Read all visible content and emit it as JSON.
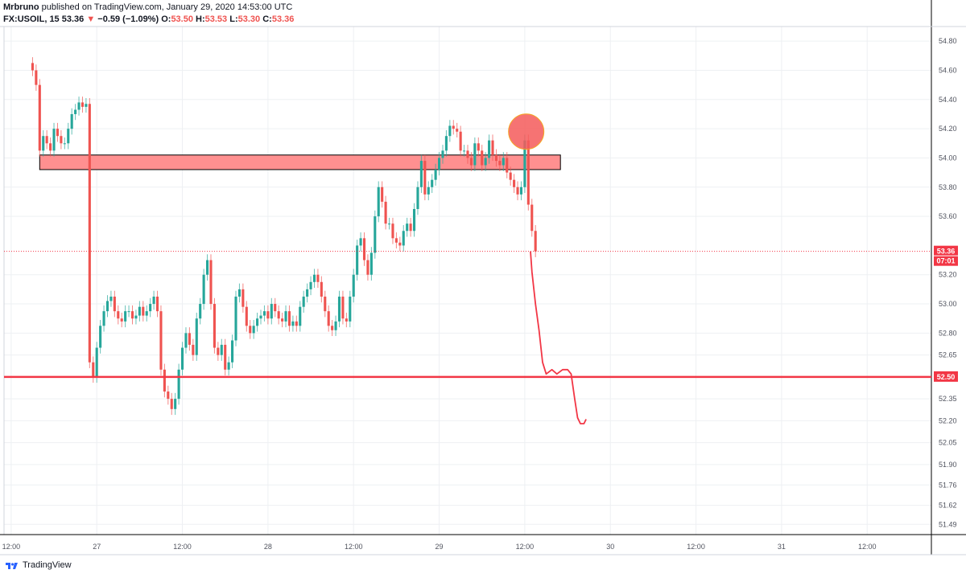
{
  "header": {
    "author": "Mrbruno",
    "published": "published on TradingView.com, January 29, 2020 14:53:00 UTC",
    "symbol": "FX:USOIL, 15",
    "last": "53.36",
    "change_arrow": "▼",
    "change": "−0.59 (−1.09%)",
    "o_label": "O:",
    "o_value": "53.50",
    "h_label": "H:",
    "h_value": "53.53",
    "l_label": "L:",
    "l_value": "53.30",
    "c_label": "C:",
    "c_value": "53.36"
  },
  "footer": {
    "brand": "TradingView",
    "logo_icon": "tradingview-logo-icon"
  },
  "colors": {
    "up": "#26a69a",
    "down": "#ef5350",
    "level": "#f23645",
    "zone_fill": "#ff8a8a",
    "grid": "#eef0f3",
    "axis_text": "#50535e"
  },
  "chart_data": {
    "type": "candlestick",
    "title": "FX:USOIL, 15",
    "xlabel": "",
    "ylabel": "",
    "ylim": [
      51.42,
      54.9
    ],
    "grid": true,
    "y_ticks": [
      "54.80",
      "54.60",
      "54.40",
      "54.20",
      "54.00",
      "53.80",
      "53.60",
      "53.20",
      "53.00",
      "52.80",
      "52.65",
      "52.50",
      "52.35",
      "52.20",
      "52.05",
      "51.90",
      "51.76",
      "51.62",
      "51.49"
    ],
    "y_tick_values": [
      54.8,
      54.6,
      54.4,
      54.2,
      54.0,
      53.8,
      53.6,
      53.2,
      53.0,
      52.8,
      52.65,
      52.5,
      52.35,
      52.2,
      52.05,
      51.9,
      51.76,
      51.62,
      51.49
    ],
    "x_ticks": [
      "12:00",
      "27",
      "12:00",
      "28",
      "12:00",
      "29",
      "12:00",
      "30",
      "12:00",
      "31",
      "12:00"
    ],
    "x_tick_hours": [
      12,
      24,
      36,
      48,
      60,
      72,
      84,
      96,
      108,
      120,
      132
    ],
    "x_domain_hours": [
      11.0,
      141.0
    ],
    "last_price_label": "53.36",
    "last_price_value": 53.36,
    "countdown_label": "07:01",
    "support_label": "52.50",
    "support_value": 52.5,
    "resistance_zone": {
      "from_hour": 16.0,
      "to_hour": 89.0,
      "low": 53.92,
      "high": 54.02
    },
    "circle_marker": {
      "hour": 84.2,
      "price": 54.18
    },
    "projection_path": [
      [
        84.8,
        53.36
      ],
      [
        85.0,
        53.22
      ],
      [
        85.5,
        53.0
      ],
      [
        86.0,
        52.82
      ],
      [
        86.5,
        52.6
      ],
      [
        87.0,
        52.52
      ],
      [
        87.8,
        52.55
      ],
      [
        88.5,
        52.52
      ],
      [
        89.3,
        52.55
      ],
      [
        90.0,
        52.55
      ],
      [
        90.5,
        52.52
      ],
      [
        91.0,
        52.35
      ],
      [
        91.4,
        52.22
      ],
      [
        91.8,
        52.18
      ],
      [
        92.3,
        52.18
      ],
      [
        92.6,
        52.21
      ]
    ],
    "points": [
      [
        15.0,
        54.6
      ],
      [
        15.5,
        54.5
      ],
      [
        16.0,
        54.05
      ],
      [
        16.5,
        54.15
      ],
      [
        17.0,
        54.1
      ],
      [
        17.5,
        54.05
      ],
      [
        18.0,
        54.2
      ],
      [
        18.5,
        54.15
      ],
      [
        19.0,
        54.1
      ],
      [
        19.5,
        54.1
      ],
      [
        20.0,
        54.2
      ],
      [
        20.5,
        54.3
      ],
      [
        21.0,
        54.33
      ],
      [
        21.5,
        54.38
      ],
      [
        22.0,
        54.35
      ],
      [
        22.5,
        54.37
      ],
      [
        23.0,
        52.6
      ],
      [
        23.5,
        52.5
      ],
      [
        24.0,
        52.7
      ],
      [
        24.5,
        52.85
      ],
      [
        25.0,
        52.95
      ],
      [
        25.5,
        53.02
      ],
      [
        26.0,
        53.05
      ],
      [
        26.5,
        52.95
      ],
      [
        27.0,
        52.9
      ],
      [
        27.5,
        52.88
      ],
      [
        28.0,
        52.95
      ],
      [
        28.5,
        52.95
      ],
      [
        29.0,
        52.9
      ],
      [
        29.5,
        52.92
      ],
      [
        30.0,
        52.98
      ],
      [
        30.5,
        52.92
      ],
      [
        31.0,
        52.95
      ],
      [
        31.5,
        53.0
      ],
      [
        32.0,
        53.05
      ],
      [
        32.5,
        52.95
      ],
      [
        33.0,
        52.55
      ],
      [
        33.5,
        52.4
      ],
      [
        34.0,
        52.35
      ],
      [
        34.5,
        52.28
      ],
      [
        35.0,
        52.35
      ],
      [
        35.5,
        52.55
      ],
      [
        36.0,
        52.7
      ],
      [
        36.5,
        52.8
      ],
      [
        37.0,
        52.72
      ],
      [
        37.5,
        52.65
      ],
      [
        38.0,
        52.9
      ],
      [
        38.5,
        53.0
      ],
      [
        39.0,
        53.2
      ],
      [
        39.5,
        53.3
      ],
      [
        40.0,
        53.0
      ],
      [
        40.5,
        52.7
      ],
      [
        41.0,
        52.65
      ],
      [
        41.5,
        52.72
      ],
      [
        42.0,
        52.55
      ],
      [
        42.5,
        52.6
      ],
      [
        43.0,
        52.75
      ],
      [
        43.5,
        53.05
      ],
      [
        44.0,
        53.1
      ],
      [
        44.5,
        52.98
      ],
      [
        45.0,
        52.85
      ],
      [
        45.5,
        52.8
      ],
      [
        46.0,
        52.85
      ],
      [
        46.5,
        52.9
      ],
      [
        47.0,
        52.92
      ],
      [
        47.5,
        52.95
      ],
      [
        48.0,
        52.9
      ],
      [
        48.5,
        53.0
      ],
      [
        49.0,
        52.95
      ],
      [
        49.5,
        52.9
      ],
      [
        50.0,
        52.88
      ],
      [
        50.5,
        52.95
      ],
      [
        51.0,
        52.85
      ],
      [
        51.5,
        52.88
      ],
      [
        52.0,
        52.85
      ],
      [
        52.5,
        52.98
      ],
      [
        53.0,
        53.05
      ],
      [
        53.5,
        53.1
      ],
      [
        54.0,
        53.15
      ],
      [
        54.5,
        53.2
      ],
      [
        55.0,
        53.15
      ],
      [
        55.5,
        53.05
      ],
      [
        56.0,
        52.95
      ],
      [
        56.5,
        52.85
      ],
      [
        57.0,
        52.82
      ],
      [
        57.5,
        52.88
      ],
      [
        58.0,
        53.05
      ],
      [
        58.5,
        52.9
      ],
      [
        59.0,
        52.88
      ],
      [
        59.5,
        53.05
      ],
      [
        60.0,
        53.2
      ],
      [
        60.5,
        53.4
      ],
      [
        61.0,
        53.45
      ],
      [
        61.5,
        53.3
      ],
      [
        62.0,
        53.2
      ],
      [
        62.5,
        53.35
      ],
      [
        63.0,
        53.6
      ],
      [
        63.5,
        53.8
      ],
      [
        64.0,
        53.7
      ],
      [
        64.5,
        53.55
      ],
      [
        65.0,
        53.55
      ],
      [
        65.5,
        53.45
      ],
      [
        66.0,
        53.42
      ],
      [
        66.5,
        53.4
      ],
      [
        67.0,
        53.5
      ],
      [
        67.5,
        53.55
      ],
      [
        68.0,
        53.5
      ],
      [
        68.5,
        53.65
      ],
      [
        69.0,
        53.8
      ],
      [
        69.5,
        53.98
      ],
      [
        70.0,
        53.75
      ],
      [
        70.5,
        53.8
      ],
      [
        71.0,
        53.85
      ],
      [
        71.5,
        53.92
      ],
      [
        72.0,
        54.0
      ],
      [
        72.5,
        54.05
      ],
      [
        73.0,
        54.15
      ],
      [
        73.5,
        54.22
      ],
      [
        74.0,
        54.2
      ],
      [
        74.5,
        54.18
      ],
      [
        75.0,
        54.05
      ],
      [
        75.5,
        54.05
      ],
      [
        76.0,
        54.0
      ],
      [
        76.5,
        53.95
      ],
      [
        77.0,
        54.1
      ],
      [
        77.5,
        54.05
      ],
      [
        78.0,
        53.95
      ],
      [
        78.5,
        54.0
      ],
      [
        79.0,
        54.12
      ],
      [
        79.5,
        54.02
      ],
      [
        80.0,
        53.98
      ],
      [
        80.5,
        53.95
      ],
      [
        81.0,
        54.0
      ],
      [
        81.5,
        53.9
      ],
      [
        82.0,
        53.85
      ],
      [
        82.5,
        53.8
      ],
      [
        83.0,
        53.75
      ],
      [
        83.5,
        53.8
      ],
      [
        84.0,
        54.12
      ],
      [
        84.5,
        53.68
      ],
      [
        85.0,
        53.5
      ],
      [
        85.5,
        53.36
      ]
    ]
  }
}
